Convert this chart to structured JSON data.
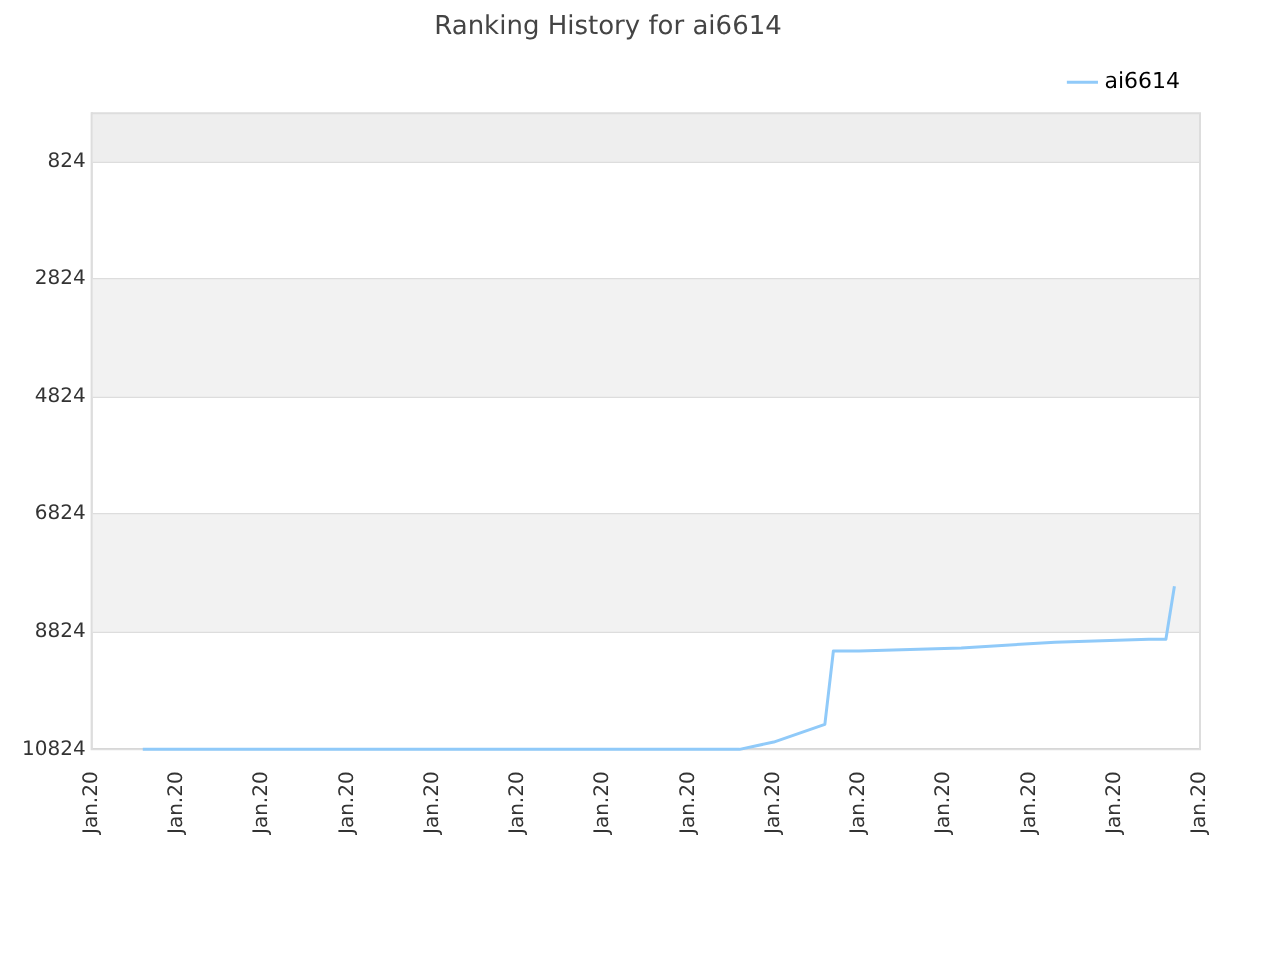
{
  "chart_data": {
    "type": "line",
    "title": "Ranking History for ai6614",
    "categories": [
      "Jan.20",
      null,
      null,
      null,
      null,
      null,
      null,
      null,
      null,
      null,
      "Jan.20",
      null,
      null,
      null,
      null,
      null,
      null,
      null,
      null,
      null,
      "Jan.20",
      null,
      null,
      null,
      null,
      null,
      null,
      null,
      null,
      null,
      "Jan.20",
      null,
      null,
      null,
      null,
      null,
      null,
      null,
      null,
      null,
      "Jan.20",
      null,
      null,
      null,
      null,
      null,
      null,
      null,
      null,
      null,
      "Jan.20",
      null,
      null,
      null,
      null,
      null,
      null,
      null,
      null,
      null,
      "Jan.20",
      null,
      null,
      null,
      null,
      null,
      null,
      null,
      null,
      null,
      "Jan.20",
      null,
      null,
      null,
      null,
      null,
      null,
      null,
      null,
      null,
      "Jan.20",
      null,
      null,
      null,
      null,
      null,
      null,
      null,
      null,
      null,
      "Jan.20",
      null,
      null,
      null,
      null,
      null,
      null,
      null,
      null,
      null,
      "Jan.20",
      null,
      null,
      null,
      null,
      null,
      null,
      null,
      null,
      null,
      "Jan.20",
      null,
      null,
      null,
      null,
      null,
      null,
      null,
      null,
      null,
      "Jan.20",
      null,
      null,
      null,
      null,
      null,
      null,
      null,
      null,
      null,
      "Jan.20"
    ],
    "series": [
      {
        "name": "ai6614",
        "color": "#90caf9",
        "values": [
          null,
          null,
          null,
          null,
          null,
          null,
          10824,
          null,
          null,
          null,
          null,
          null,
          null,
          null,
          null,
          null,
          null,
          null,
          null,
          null,
          null,
          null,
          null,
          null,
          null,
          null,
          null,
          null,
          null,
          null,
          null,
          null,
          null,
          null,
          null,
          null,
          null,
          null,
          null,
          null,
          null,
          null,
          null,
          null,
          null,
          null,
          null,
          null,
          null,
          null,
          null,
          null,
          null,
          null,
          null,
          null,
          null,
          null,
          null,
          null,
          null,
          null,
          null,
          null,
          null,
          null,
          null,
          null,
          null,
          null,
          null,
          null,
          null,
          null,
          null,
          null,
          10824,
          null,
          null,
          null,
          10700,
          null,
          null,
          null,
          null,
          null,
          10400,
          9150,
          null,
          null,
          9150,
          null,
          null,
          null,
          null,
          null,
          null,
          null,
          null,
          null,
          null,
          null,
          9100,
          null,
          null,
          null,
          null,
          null,
          null,
          null,
          null,
          null,
          null,
          9000,
          null,
          null,
          null,
          null,
          null,
          null,
          null,
          null,
          null,
          null,
          8950,
          null,
          8950,
          8050,
          null,
          null,
          null
        ]
      }
    ],
    "ylim": [
      10824,
      0
    ],
    "yticks": [
      824,
      2824,
      4824,
      6824,
      8824,
      10824
    ],
    "bands": [
      {
        "axis": "y",
        "from": 0,
        "to": 824,
        "color": "#eeeeee"
      },
      {
        "axis": "y",
        "from": 2824,
        "to": 4824,
        "color": "#f2f2f2"
      },
      {
        "axis": "y",
        "from": 6824,
        "to": 8824,
        "color": "#f2f2f2"
      }
    ],
    "grid": "y",
    "legend": "top right",
    "marker": "none",
    "line_style": "solid"
  }
}
